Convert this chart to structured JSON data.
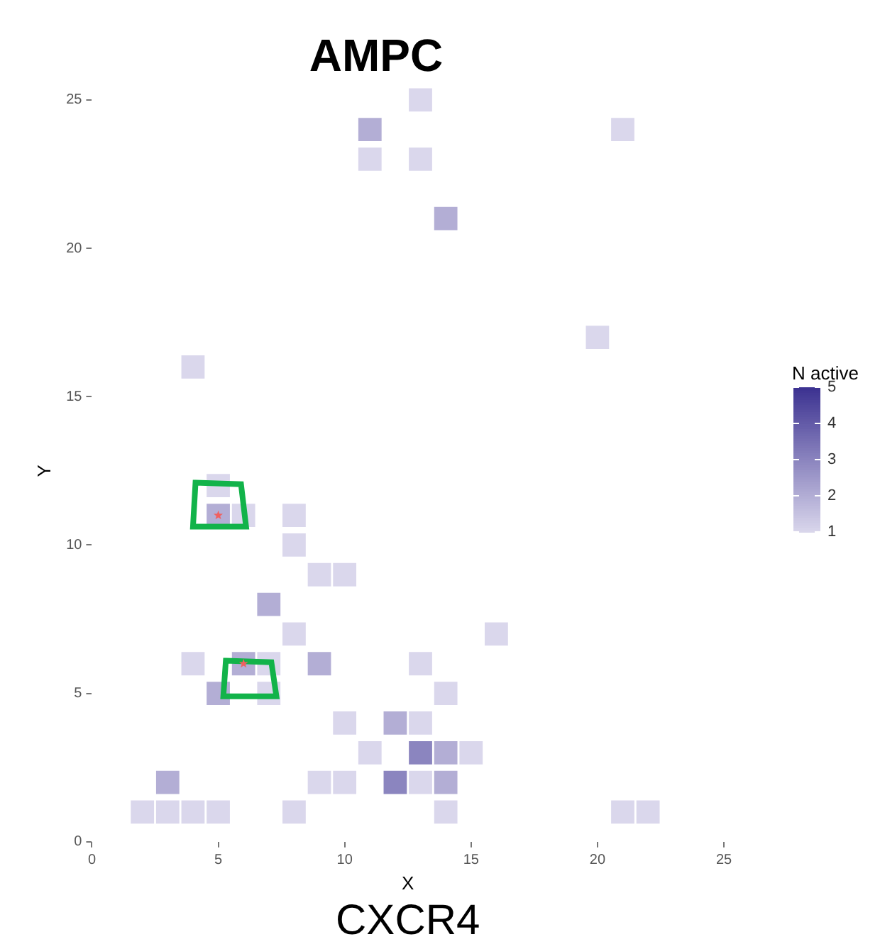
{
  "chart_data": {
    "type": "scatter",
    "title": "AMPC",
    "xlabel": "X",
    "ylabel": "Y",
    "clabel": "N active",
    "annotations": [
      "CXCR4"
    ],
    "marker": "square",
    "grid": false,
    "xlim": [
      0,
      25
    ],
    "ylim": [
      0,
      25
    ],
    "xticks": [
      0,
      5,
      10,
      15,
      20,
      25
    ],
    "yticks": [
      0,
      5,
      10,
      15,
      20,
      25
    ],
    "clim": [
      1,
      5
    ],
    "cticks": [
      1,
      2,
      3,
      4,
      5
    ],
    "x": [
      13,
      11,
      21,
      11,
      13,
      14,
      20,
      4,
      5,
      5,
      6,
      8,
      8,
      9,
      10,
      7,
      8,
      16,
      4,
      6,
      7,
      9,
      13,
      5,
      7,
      14,
      10,
      12,
      13,
      11,
      13,
      14,
      15,
      3,
      9,
      10,
      12,
      13,
      14,
      2,
      3,
      4,
      5,
      8,
      14,
      21,
      22
    ],
    "values": [
      25,
      24,
      24,
      23,
      23,
      21,
      17,
      16,
      12,
      11,
      11,
      11,
      10,
      9,
      9,
      8,
      7,
      7,
      6,
      6,
      6,
      6,
      6,
      5,
      5,
      5,
      4,
      4,
      4,
      3,
      3,
      3,
      3,
      2,
      2,
      2,
      2,
      2,
      2,
      1,
      1,
      1,
      1,
      1,
      1,
      1,
      1
    ],
    "cvalues": [
      1,
      2,
      1,
      1,
      1,
      2,
      1,
      1,
      1,
      2,
      1,
      1,
      1,
      1,
      1,
      2,
      1,
      1,
      1,
      2,
      1,
      2,
      1,
      2,
      1,
      1,
      1,
      2,
      1,
      1,
      3,
      2,
      1,
      2,
      1,
      1,
      3,
      1,
      2,
      1,
      1,
      1,
      1,
      1,
      1,
      1,
      1
    ]
  }
}
